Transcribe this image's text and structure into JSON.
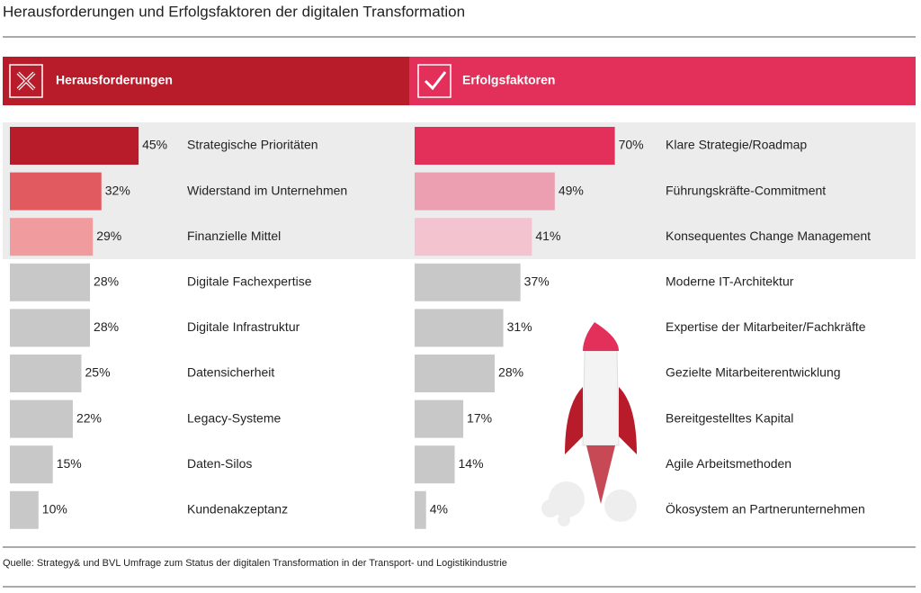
{
  "title": "Herausforderungen und Erfolgsfaktoren der digitalen Transformation",
  "source": "Quelle: Strategy& und BVL Umfrage zum Status der digitalen Transformation in der Transport- und Logistikindustrie",
  "chart_data": [
    {
      "type": "bar",
      "orientation": "horizontal",
      "title": "Herausforderungen",
      "header_color": "#b81c2b",
      "categories": [
        "Strategische Prioritäten",
        "Widerstand im Unternehmen",
        "Finanzielle Mittel",
        "Digitale Fachexpertise",
        "Digitale Infrastruktur",
        "Datensicherheit",
        "Legacy-Systeme",
        "Daten-Silos",
        "Kundenakzeptanz"
      ],
      "values": [
        45,
        32,
        29,
        28,
        28,
        25,
        22,
        15,
        10
      ],
      "value_labels": [
        "45%",
        "32%",
        "29%",
        "28%",
        "28%",
        "25%",
        "22%",
        "15%",
        "10%"
      ],
      "colors": [
        "#b81c2b",
        "#e05a5f",
        "#f09b9e",
        "#c8c8c8",
        "#c8c8c8",
        "#c8c8c8",
        "#c8c8c8",
        "#c8c8c8",
        "#c8c8c8"
      ]
    },
    {
      "type": "bar",
      "orientation": "horizontal",
      "title": "Erfolgsfaktoren",
      "header_color": "#e3305a",
      "categories": [
        "Klare Strategie/Roadmap",
        "Führungskräfte-Commitment",
        "Konsequentes Change Management",
        "Moderne IT-Architektur",
        "Expertise der Mitarbeiter/Fachkräfte",
        "Gezielte Mitarbeiterentwicklung",
        "Bereitgestelltes Kapital",
        "Agile Arbeitsmethoden",
        "Ökosystem an Partnerunternehmen"
      ],
      "values": [
        70,
        49,
        41,
        37,
        31,
        28,
        17,
        14,
        4
      ],
      "value_labels": [
        "70%",
        "49%",
        "41%",
        "37%",
        "31%",
        "28%",
        "17%",
        "14%",
        "4%"
      ],
      "colors": [
        "#e3305a",
        "#eb9fb0",
        "#f3c3cf",
        "#c8c8c8",
        "#c8c8c8",
        "#c8c8c8",
        "#c8c8c8",
        "#c8c8c8",
        "#c8c8c8"
      ]
    }
  ]
}
